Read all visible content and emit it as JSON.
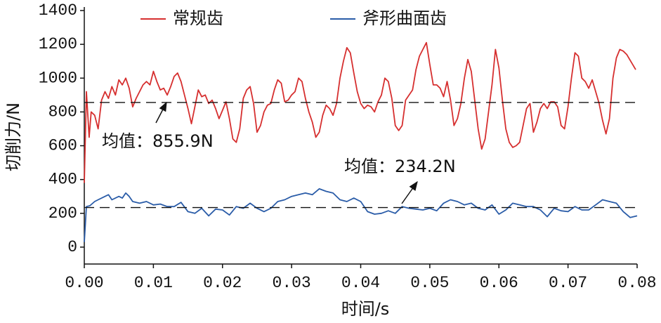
{
  "chart_data": {
    "type": "line",
    "xlabel": "时间/s",
    "ylabel": "切削力/N",
    "xlim": [
      0,
      0.08
    ],
    "ylim": [
      -100,
      1400
    ],
    "xticks": [
      {
        "value": 0,
        "label": "0.00"
      },
      0.01,
      0.02,
      0.03,
      0.04,
      0.05,
      0.06,
      0.07,
      0.08
    ],
    "yticks": [
      0,
      200,
      400,
      600,
      800,
      1000,
      1200,
      1400
    ],
    "legend": "top",
    "mean_lines": [
      {
        "value": 855.9,
        "label": "均值：855.9N"
      },
      {
        "value": 234.2,
        "label": "均值：234.2N"
      }
    ],
    "series": [
      {
        "name": "常规齿",
        "color": "#d62f2f",
        "x": [
          0,
          0.0003,
          0.0007,
          0.001,
          0.0015,
          0.002,
          0.0025,
          0.003,
          0.0035,
          0.004,
          0.0045,
          0.005,
          0.0055,
          0.006,
          0.0065,
          0.007,
          0.0075,
          0.008,
          0.0085,
          0.009,
          0.0095,
          0.01,
          0.0105,
          0.011,
          0.0115,
          0.012,
          0.0125,
          0.013,
          0.0135,
          0.014,
          0.0145,
          0.015,
          0.0155,
          0.016,
          0.0165,
          0.017,
          0.0175,
          0.018,
          0.0185,
          0.019,
          0.0195,
          0.02,
          0.0205,
          0.021,
          0.0215,
          0.022,
          0.0225,
          0.023,
          0.0235,
          0.024,
          0.0245,
          0.025,
          0.0255,
          0.026,
          0.0265,
          0.027,
          0.0275,
          0.028,
          0.0285,
          0.029,
          0.0295,
          0.03,
          0.0305,
          0.031,
          0.0315,
          0.032,
          0.0325,
          0.033,
          0.0335,
          0.034,
          0.0345,
          0.035,
          0.0355,
          0.036,
          0.0365,
          0.037,
          0.0375,
          0.038,
          0.0385,
          0.039,
          0.0395,
          0.04,
          0.0405,
          0.041,
          0.0415,
          0.042,
          0.0425,
          0.043,
          0.0435,
          0.044,
          0.0445,
          0.045,
          0.0455,
          0.046,
          0.0465,
          0.047,
          0.0475,
          0.048,
          0.0485,
          0.049,
          0.0495,
          0.05,
          0.0505,
          0.051,
          0.0515,
          0.052,
          0.0525,
          0.053,
          0.0535,
          0.054,
          0.0545,
          0.055,
          0.0555,
          0.056,
          0.0565,
          0.057,
          0.0575,
          0.058,
          0.0585,
          0.059,
          0.0595,
          0.06,
          0.0605,
          0.061,
          0.0615,
          0.062,
          0.0625,
          0.063,
          0.0635,
          0.064,
          0.0645,
          0.065,
          0.0655,
          0.066,
          0.0665,
          0.067,
          0.0675,
          0.068,
          0.0685,
          0.069,
          0.0695,
          0.07,
          0.0705,
          0.071,
          0.0715,
          0.072,
          0.0725,
          0.073,
          0.0735,
          0.074,
          0.0745,
          0.075,
          0.0755,
          0.076,
          0.0765,
          0.077,
          0.0775,
          0.078,
          0.0785,
          0.0798
        ],
        "values": [
          380,
          920,
          650,
          800,
          780,
          700,
          870,
          920,
          880,
          950,
          900,
          990,
          960,
          1000,
          940,
          830,
          880,
          920,
          960,
          980,
          960,
          1040,
          980,
          930,
          940,
          900,
          950,
          1010,
          1030,
          980,
          900,
          820,
          730,
          830,
          930,
          890,
          900,
          850,
          870,
          820,
          760,
          810,
          860,
          760,
          640,
          620,
          700,
          880,
          930,
          950,
          850,
          680,
          720,
          800,
          840,
          850,
          930,
          990,
          970,
          860,
          870,
          900,
          920,
          1000,
          980,
          880,
          800,
          740,
          650,
          680,
          780,
          840,
          820,
          780,
          850,
          1000,
          1100,
          1180,
          1150,
          1030,
          920,
          850,
          820,
          840,
          830,
          800,
          860,
          900,
          1000,
          980,
          880,
          720,
          690,
          720,
          870,
          900,
          930,
          1050,
          1130,
          1170,
          1210,
          1080,
          960,
          960,
          940,
          890,
          980,
          870,
          720,
          760,
          850,
          1000,
          1110,
          1040,
          870,
          700,
          580,
          640,
          800,
          960,
          1170,
          1060,
          870,
          700,
          620,
          590,
          600,
          620,
          720,
          820,
          850,
          680,
          740,
          820,
          850,
          820,
          860,
          860,
          830,
          720,
          700,
          830,
          1000,
          1150,
          1130,
          1000,
          980,
          940,
          990,
          920,
          850,
          750,
          670,
          760,
          1000,
          1120,
          1170,
          1160,
          1140,
          1050
        ]
      },
      {
        "name": "斧形曲面齿",
        "color": "#2a5ca8",
        "x": [
          0,
          0.0003,
          0.0008,
          0.0015,
          0.002,
          0.003,
          0.0035,
          0.004,
          0.005,
          0.0055,
          0.006,
          0.0065,
          0.007,
          0.008,
          0.009,
          0.01,
          0.011,
          0.012,
          0.013,
          0.014,
          0.015,
          0.016,
          0.017,
          0.018,
          0.019,
          0.02,
          0.021,
          0.022,
          0.023,
          0.024,
          0.025,
          0.026,
          0.027,
          0.028,
          0.029,
          0.03,
          0.031,
          0.032,
          0.033,
          0.034,
          0.035,
          0.036,
          0.037,
          0.038,
          0.039,
          0.04,
          0.041,
          0.042,
          0.043,
          0.044,
          0.045,
          0.046,
          0.047,
          0.048,
          0.049,
          0.05,
          0.051,
          0.052,
          0.053,
          0.054,
          0.055,
          0.056,
          0.057,
          0.058,
          0.059,
          0.06,
          0.061,
          0.062,
          0.063,
          0.064,
          0.065,
          0.066,
          0.067,
          0.068,
          0.069,
          0.07,
          0.071,
          0.072,
          0.073,
          0.074,
          0.075,
          0.076,
          0.077,
          0.078,
          0.079,
          0.08
        ],
        "values": [
          30,
          240,
          245,
          270,
          280,
          300,
          310,
          280,
          300,
          290,
          320,
          300,
          270,
          260,
          270,
          250,
          255,
          240,
          240,
          265,
          210,
          200,
          230,
          185,
          225,
          220,
          190,
          240,
          230,
          260,
          230,
          210,
          230,
          270,
          280,
          300,
          310,
          320,
          310,
          345,
          330,
          320,
          280,
          270,
          290,
          270,
          210,
          195,
          200,
          215,
          200,
          240,
          230,
          225,
          220,
          230,
          215,
          260,
          280,
          270,
          250,
          260,
          230,
          220,
          250,
          195,
          220,
          260,
          250,
          240,
          240,
          220,
          180,
          230,
          215,
          210,
          240,
          220,
          220,
          250,
          280,
          270,
          260,
          210,
          175,
          185
        ]
      }
    ]
  }
}
